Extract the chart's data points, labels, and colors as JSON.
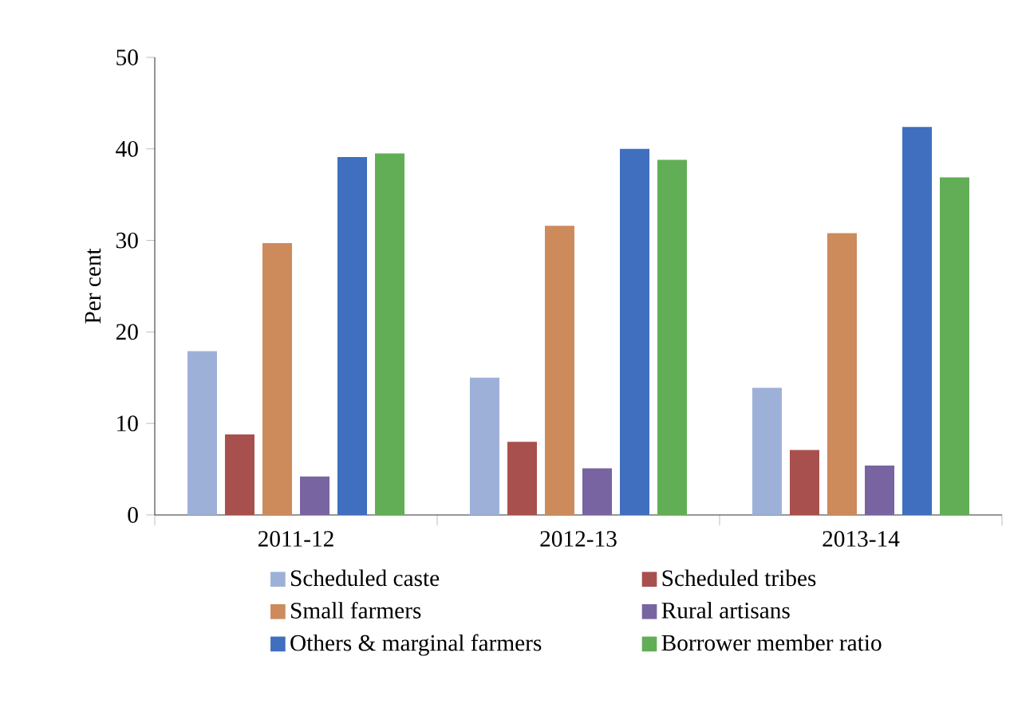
{
  "chart_data": {
    "type": "bar",
    "ylabel": "Per cent",
    "categories": [
      "2011-12",
      "2012-13",
      "2013-14"
    ],
    "series": [
      {
        "name": "Scheduled caste",
        "color": "#9db1d8",
        "values": [
          17.9,
          15.0,
          13.9
        ]
      },
      {
        "name": "Scheduled tribes",
        "color": "#a8504d",
        "values": [
          8.8,
          8.0,
          7.1
        ]
      },
      {
        "name": "Small farmers",
        "color": "#cd8a5b",
        "values": [
          29.7,
          31.6,
          30.8
        ]
      },
      {
        "name": "Rural artisans",
        "color": "#7864a0",
        "values": [
          4.2,
          5.1,
          5.4
        ]
      },
      {
        "name": "Others & marginal farmers",
        "color": "#3f6fbe",
        "values": [
          39.1,
          40.0,
          42.4
        ]
      },
      {
        "name": "Borrower member ratio",
        "color": "#62ae56",
        "values": [
          39.5,
          38.8,
          36.9
        ]
      }
    ],
    "ylim": [
      0,
      50
    ],
    "yticks": [
      0,
      10,
      20,
      30,
      40,
      50
    ],
    "legend": "bottom"
  }
}
